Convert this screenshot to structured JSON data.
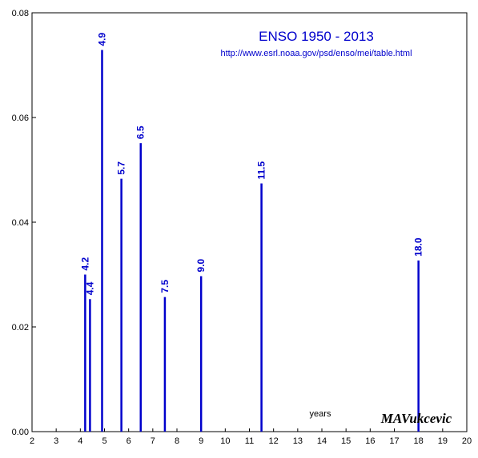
{
  "chart_data": {
    "type": "bar",
    "title": "ENSO 1950 - 2013",
    "subtitle": "http://www.esrl.noaa.gov/psd/enso/mei/table.html",
    "xlabel": "years",
    "ylabel": "",
    "signature": "MAVukcevic",
    "xlim": [
      2,
      20
    ],
    "ylim": [
      0,
      0.08
    ],
    "xticks": [
      2,
      3,
      4,
      5,
      6,
      7,
      8,
      9,
      10,
      11,
      12,
      13,
      14,
      15,
      16,
      17,
      18,
      19,
      20
    ],
    "yticks": [
      0,
      0.02,
      0.04,
      0.06,
      0.08
    ],
    "ytick_labels": [
      "0.00",
      "0.02",
      "0.04",
      "0.06",
      "0.08"
    ],
    "grid": false,
    "color": "#0000cc",
    "peaks": [
      {
        "x": 4.2,
        "y": 0.03,
        "label": "4.2"
      },
      {
        "x": 4.4,
        "y": 0.0253,
        "label": "4.4"
      },
      {
        "x": 4.9,
        "y": 0.0729,
        "label": "4.9"
      },
      {
        "x": 5.7,
        "y": 0.0483,
        "label": "5.7"
      },
      {
        "x": 6.5,
        "y": 0.0551,
        "label": "6.5"
      },
      {
        "x": 7.5,
        "y": 0.0257,
        "label": "7.5"
      },
      {
        "x": 9.0,
        "y": 0.0297,
        "label": "9.0"
      },
      {
        "x": 11.5,
        "y": 0.0474,
        "label": "11.5"
      },
      {
        "x": 18.0,
        "y": 0.0327,
        "label": "18.0"
      }
    ]
  }
}
